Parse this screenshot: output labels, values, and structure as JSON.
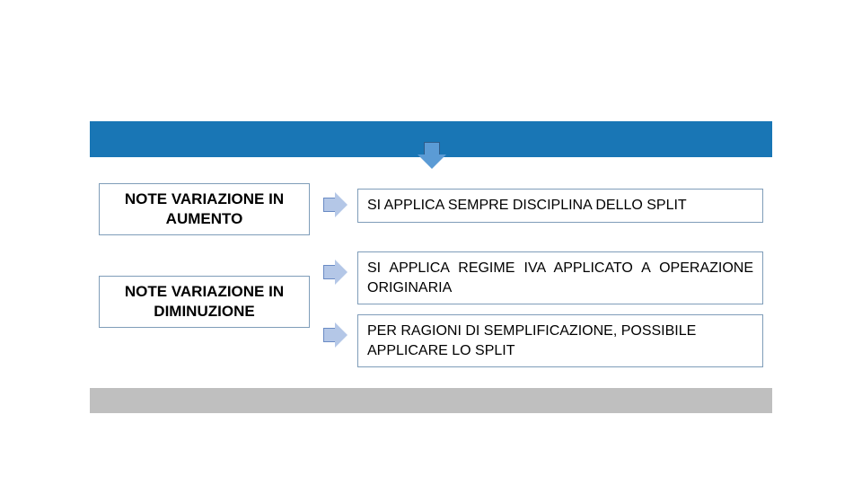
{
  "blue_bar": {
    "color": "#1976b5",
    "arrow_fill": "#5b9bd5",
    "arrow_border": "#2e5c8a"
  },
  "left_boxes": {
    "aumento": "NOTE VARIAZIONE IN AUMENTO",
    "diminuzione": "NOTE VARIAZIONE IN DIMINUZIONE"
  },
  "right_boxes": {
    "box1": "SI APPLICA SEMPRE DISCIPLINA DELLO SPLIT",
    "box2": "SI APPLICA REGIME IVA APPLICATO A OPERAZIONE ORIGINARIA",
    "box3": "PER RAGIONI DI SEMPLIFICAZIONE, POSSIBILE APPLICARE LO SPLIT"
  },
  "arrow_right": {
    "fill": "#b4c7e7",
    "border": "#6a8bc4"
  },
  "grey_bar": {
    "color": "#bfbfbf"
  },
  "box_border": "#7f9db9",
  "font_family": "Arial",
  "title_fontsize": 17,
  "body_fontsize": 16
}
